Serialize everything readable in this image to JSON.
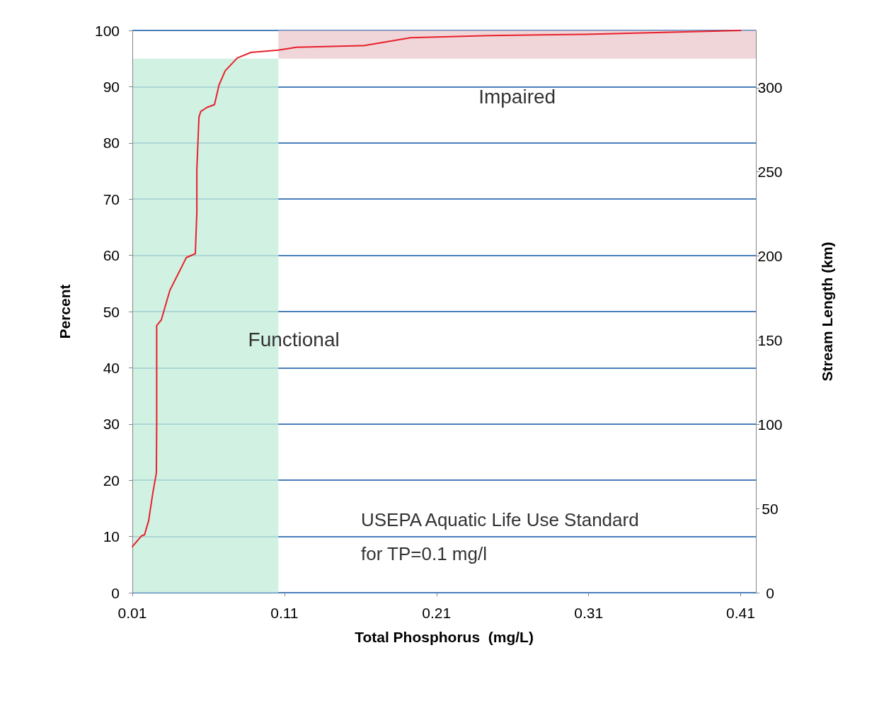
{
  "chart_data": {
    "type": "line",
    "xlabel": "Total Phosphorus  (mg/L)",
    "ylabel": "Percent",
    "y2label": "Stream Length (km)",
    "x": [
      0.01,
      0.016,
      0.018,
      0.0207,
      0.0235,
      0.0258,
      0.026,
      0.026,
      0.026,
      0.029,
      0.0347,
      0.044,
      0.0455,
      0.0514,
      0.0524,
      0.0524,
      0.0538,
      0.055,
      0.059,
      0.064,
      0.067,
      0.071,
      0.079,
      0.088,
      0.106,
      0.118,
      0.162,
      0.193,
      0.245,
      0.308,
      0.41
    ],
    "series": [
      {
        "color": "#e8212b",
        "values": [
          8.2,
          10.1,
          10.3,
          12.8,
          17.8,
          21.3,
          29.8,
          38.7,
          47.5,
          48.5,
          53.8,
          58.8,
          59.6,
          60.3,
          67.6,
          75.2,
          84.6,
          85.6,
          86.3,
          86.8,
          90.3,
          92.8,
          95.1,
          96.1,
          96.5,
          97.0,
          97.3,
          98.7,
          99.1,
          99.3,
          100
        ]
      }
    ],
    "xlim": [
      0.01,
      0.42
    ],
    "xticks": [
      0.01,
      0.11,
      0.21,
      0.31,
      0.41
    ],
    "ylim": [
      0,
      100
    ],
    "yticks": [
      0,
      10,
      20,
      30,
      40,
      50,
      60,
      70,
      80,
      90,
      100
    ],
    "y2lim": [
      0,
      334
    ],
    "y2ticks": [
      0,
      50,
      100,
      150,
      200,
      250,
      300
    ],
    "bands": [
      {
        "axis": "x",
        "from": 0.01,
        "to": 0.106,
        "label": "Functional",
        "color": "#c6eedc"
      },
      {
        "axis": "y",
        "from": 95,
        "to": 100,
        "label": "Impaired",
        "color": "#eccbcf"
      }
    ],
    "annotations": [
      "USEPA Aquatic Life Use Standard\nfor TP=0.1 mg/l"
    ],
    "grid": "y",
    "marker": "none",
    "line_style": "solid"
  }
}
